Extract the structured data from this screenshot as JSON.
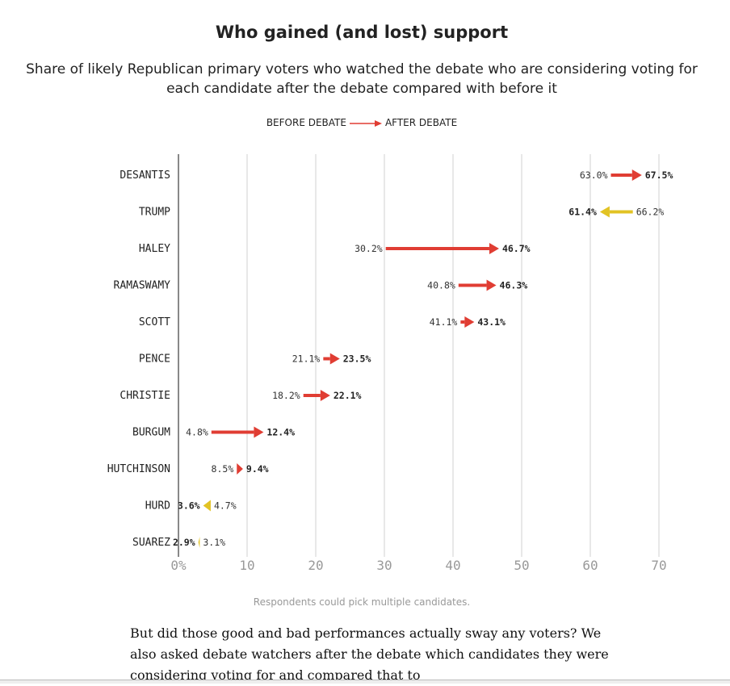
{
  "title": "Who gained (and lost) support",
  "subtitle": "Share of likely Republican primary voters who watched the debate who are considering voting for each candidate after the debate compared with before it",
  "legend": {
    "before": "BEFORE DEBATE",
    "after": "AFTER DEBATE"
  },
  "note": "Respondents could pick multiple candidates.",
  "body_text": "But did those good and bad performances actually sway any voters? We also asked debate watchers after the debate which candidates they were considering voting for and compared that to",
  "colors": {
    "gain": "#e03d33",
    "loss": "#e2c324",
    "grid": "#d0d0d0"
  },
  "chart_data": {
    "type": "arrow-dot",
    "xlim": [
      0,
      70
    ],
    "ticks": [
      "0%",
      "10",
      "20",
      "30",
      "40",
      "50",
      "60",
      "70"
    ],
    "tick_values": [
      0,
      10,
      20,
      30,
      40,
      50,
      60,
      70
    ],
    "categories": [
      "DESANTIS",
      "TRUMP",
      "HALEY",
      "RAMASWAMY",
      "SCOTT",
      "PENCE",
      "CHRISTIE",
      "BURGUM",
      "HUTCHINSON",
      "HURD",
      "SUAREZ"
    ],
    "before": [
      63.0,
      66.2,
      30.2,
      40.8,
      41.1,
      21.1,
      18.2,
      4.8,
      8.5,
      4.7,
      3.1
    ],
    "after": [
      67.5,
      61.4,
      46.7,
      46.3,
      43.1,
      23.5,
      22.1,
      12.4,
      9.4,
      3.6,
      2.9
    ]
  }
}
